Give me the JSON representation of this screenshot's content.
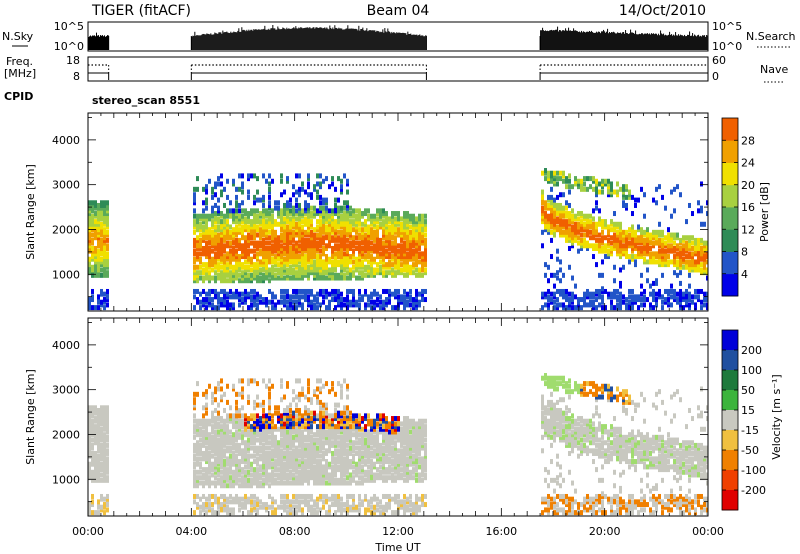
{
  "header": {
    "radar": "TIGER",
    "mode": "(fitACF)",
    "beam": "Beam 04",
    "date": "14/Oct/2010"
  },
  "top_panels": {
    "nsky_label": "N.Sky",
    "nsky_ticks": [
      "10^5",
      "10^0"
    ],
    "nsearch_label": "N.Search",
    "nsearch_ticks": [
      "10^5",
      "10^0"
    ],
    "freq_label_1": "Freq.",
    "freq_label_2": "[MHz]",
    "freq_ticks": [
      "18",
      "8"
    ],
    "nave_label": "Nave",
    "nave_ticks": [
      "60",
      "0"
    ],
    "cpid_label": "CPID",
    "cpid_text": "stereo_scan 8551"
  },
  "chart_data": [
    {
      "type": "heatmap",
      "name": "power",
      "ylabel": "Slant Range [km]",
      "xlabel": "Time UT",
      "x_ticks": [
        "00:00",
        "04:00",
        "08:00",
        "12:00",
        "16:00",
        "20:00",
        "00:00"
      ],
      "xlim_hours": [
        0,
        24
      ],
      "y_ticks": [
        1000,
        2000,
        3000,
        4000
      ],
      "ylim_km": [
        180,
        4600
      ],
      "data_intervals_hours": [
        [
          0,
          0.8
        ],
        [
          4.0,
          13.1
        ],
        [
          17.5,
          24
        ]
      ],
      "colorbar": {
        "label": "Power [dB]",
        "ticks": [
          4,
          8,
          12,
          16,
          20,
          24,
          28
        ],
        "range": [
          0,
          32
        ],
        "colors": [
          "#0000e8",
          "#2255c8",
          "#2e8b57",
          "#5aaa5a",
          "#a8d040",
          "#f0e000",
          "#f0a000",
          "#f06000",
          "#e82000"
        ]
      }
    },
    {
      "type": "heatmap",
      "name": "velocity",
      "ylabel": "Slant Range [km]",
      "xlabel": "Time UT",
      "x_ticks": [
        "00:00",
        "04:00",
        "08:00",
        "12:00",
        "16:00",
        "20:00",
        "00:00"
      ],
      "xlim_hours": [
        0,
        24
      ],
      "y_ticks": [
        1000,
        2000,
        3000,
        4000
      ],
      "ylim_km": [
        180,
        4600
      ],
      "colorbar": {
        "label": "Velocity [m s⁻¹]",
        "ticks": [
          "200",
          "100",
          "50",
          "15",
          "-15",
          "-50",
          "-100",
          "-200"
        ],
        "colors": [
          "#0000d8",
          "#2050a0",
          "#1e7a3c",
          "#3cb43c",
          "#a0dc6e",
          "#c8c8c0",
          "#f0c040",
          "#f08000",
          "#f04000",
          "#e00000"
        ]
      }
    }
  ]
}
